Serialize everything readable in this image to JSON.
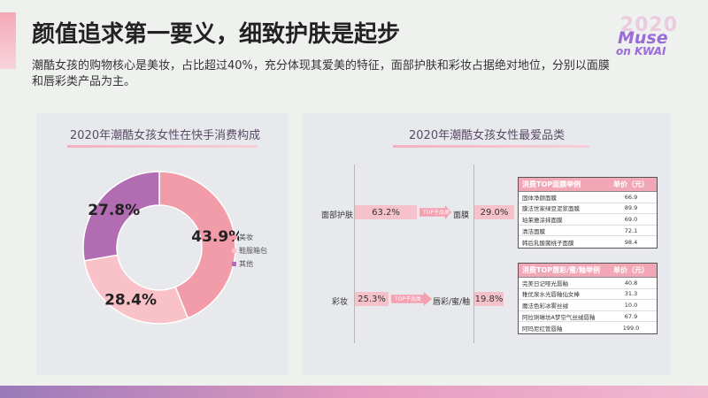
{
  "header": {
    "title": "颜值追求第一要义，细致护肤是起步",
    "subtitle": "潮酷女孩的购物核心是美妆，占比超过40%，充分体现其爱美的特征，面部护肤和彩妆占据绝对地位，分别以面膜和唇彩类产品为主。"
  },
  "logo": {
    "year": "2020",
    "line1": "Muse",
    "line2": "on KWAI"
  },
  "colors": {
    "beauty": "#f29ca9",
    "clothing": "#f8c2c8",
    "other": "#b16cb2",
    "accent": "#f2a7b6"
  },
  "chart_data": [
    {
      "type": "pie",
      "title": "2020年潮酷女孩女性在快手消费构成",
      "labels": [
        "美妆",
        "鞋服箱包",
        "其他"
      ],
      "values": [
        43.9,
        28.4,
        27.8
      ],
      "value_labels": [
        "43.9%",
        "28.4%",
        "27.8%"
      ],
      "legend_position": "right"
    },
    {
      "type": "bar",
      "title": "2020年潮酷女孩女性最爱品类",
      "categories": [
        "面部护肤",
        "彩妆"
      ],
      "values": [
        63.2,
        25.3
      ],
      "value_labels": [
        "63.2%",
        "25.3%"
      ],
      "arrow_label": "TOP子品类",
      "sub_categories": [
        "面膜",
        "唇彩/蜜/釉"
      ],
      "sub_values": [
        29.0,
        19.8
      ],
      "sub_value_labels": [
        "29.0%",
        "19.8%"
      ]
    }
  ],
  "tables": [
    {
      "header": [
        "消费TOP面膜举例",
        "单价（元）"
      ],
      "rows": [
        [
          "固体净颜面膜",
          "66.9"
        ],
        [
          "膜法世家绿豆泥浆面膜",
          "89.9"
        ],
        [
          "珀莱雅涂抹面膜",
          "69.0"
        ],
        [
          "清洁面膜",
          "72.1"
        ],
        [
          "韩后乳酸菌桃子面膜",
          "98.4"
        ]
      ]
    },
    {
      "header": [
        "消费TOP唇彩/蜜/釉举例",
        "单价（元）"
      ],
      "rows": [
        [
          "完美日记哑光唇釉",
          "40.8"
        ],
        [
          "稚优泉水光唇釉仙女棒",
          "31.3"
        ],
        [
          "魔法色彩冰雾丝绒",
          "10.0"
        ],
        [
          "阿拉珙琳坊A梦空气丝绒唇釉",
          "67.9"
        ],
        [
          "阿玛尼红管唇釉",
          "199.0"
        ]
      ]
    }
  ]
}
